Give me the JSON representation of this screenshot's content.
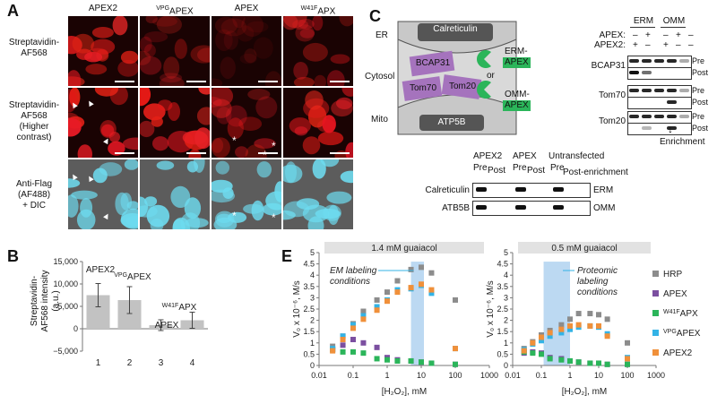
{
  "panel_letters": {
    "a": "A",
    "b": "B",
    "c": "C",
    "e": "E"
  },
  "panelA": {
    "columns": [
      "APEX2",
      "VPGAPEX",
      "APEX",
      "W41FAPX"
    ],
    "col_base": [
      "APEX2",
      "APEX",
      "APEX",
      "APX"
    ],
    "col_sup": [
      "",
      "VPG",
      "",
      "W41F"
    ],
    "rows": [
      {
        "label": "Streptavidin-\nAF568"
      },
      {
        "label": "Streptavidin-\nAF568\n(Higher\ncontrast)"
      },
      {
        "label": "Anti-Flag\n(AF488)\n+ DIC"
      }
    ],
    "arrowhead": "▲",
    "asterisk": "*"
  },
  "panelB": {
    "ylabel": "Streptavidin-AF568 intensity (a.u.)",
    "ylabel_line1": "Streptavidin-",
    "ylabel_line2": "AF568 intensity",
    "ylabel_line3": "(a.u.)",
    "bar_labels": [
      "APEX2",
      "VPGAPEX",
      "APEX",
      "W41FAPX"
    ],
    "bar_label_base": [
      "APEX2",
      "APEX",
      "APEX",
      "APX"
    ],
    "bar_label_sup": [
      "",
      "VPG",
      "",
      "W41F"
    ]
  },
  "panelC": {
    "diagram": {
      "er": "ER",
      "cytosol": "Cytosol",
      "mito": "Mito",
      "calreticulin": "Calreticulin",
      "bcap31": "BCAP31",
      "tom70": "Tom70",
      "tom20": "Tom20",
      "atp5b": "ATP5B",
      "or": "or",
      "erm_prefix": "ERM-",
      "omm_prefix": "OMM-",
      "apex": "APEX"
    },
    "blot1": {
      "groups": [
        "ERM",
        "OMM"
      ],
      "row_labels": [
        "APEX:",
        "APEX2:"
      ],
      "apex_signs": [
        "–",
        "+",
        "–",
        "+",
        "–"
      ],
      "apex2_signs": [
        "+",
        "–",
        "+",
        "–",
        "–"
      ],
      "proteins": [
        "BCAP31",
        "Tom70",
        "Tom20"
      ],
      "pre": "Pre",
      "post": "Post",
      "enrichment": "Enrichment",
      "arrow": "↓"
    },
    "blot2": {
      "groups": [
        "APEX2",
        "APEX",
        "Untransfected"
      ],
      "pre": "Pre",
      "post": "Post",
      "post_enrichment": "Post-enrichment",
      "proteins": [
        "Calreticulin",
        "ATB5B"
      ],
      "right_labels": [
        "ERM",
        "OMM"
      ]
    }
  },
  "panelE": {
    "left_title": "1.4 mM guaiacol",
    "right_title": "0.5 mM guaiacol",
    "ylabel": "V₀ x 10⁻⁶, M/s",
    "xlabel": "[H₂O₂], mM",
    "left_annotation": [
      "EM labeling",
      "conditions"
    ],
    "right_annotation": [
      "Proteomic",
      "labeling",
      "conditions"
    ],
    "legend": [
      {
        "name": "HRP",
        "color": "#8c8c8c"
      },
      {
        "name": "APEX",
        "color": "#7b4fa0"
      },
      {
        "name": "W41FAPX",
        "base": "APX",
        "sup": "W41F",
        "color": "#2bb55a"
      },
      {
        "name": "VPGAPEX",
        "base": "APEX",
        "sup": "VPG",
        "color": "#33b3e6"
      },
      {
        "name": "APEX2",
        "color": "#f0903a"
      }
    ]
  },
  "chart_data": [
    {
      "type": "bar",
      "categories": [
        "1",
        "2",
        "3",
        "4"
      ],
      "values": [
        7500,
        6400,
        800,
        1900
      ],
      "errors": [
        2600,
        3000,
        1200,
        1800
      ],
      "ylabel": "Streptavidin-AF568 intensity (a.u.)",
      "ylim": [
        -5000,
        15000
      ],
      "yticks": [
        "15,000",
        "10,000",
        "5,000",
        "0",
        "−5,000"
      ],
      "ytick_values": [
        15000,
        10000,
        5000,
        0,
        -5000
      ]
    },
    {
      "type": "scatter",
      "title": "1.4 mM guaiacol",
      "xlabel": "[H₂O₂], mM",
      "ylabel": "V₀ x 10⁻⁶, M/s",
      "xscale": "log",
      "xlim": [
        0.01,
        1000
      ],
      "ylim": [
        0,
        5
      ],
      "xticks": [
        "0.01",
        "0.1",
        "1",
        "10",
        "100",
        "1000"
      ],
      "xtick_values": [
        0.01,
        0.1,
        1,
        10,
        100,
        1000
      ],
      "yticks": [
        "0",
        "0.5",
        "1",
        "1.5",
        "2",
        "2.5",
        "3",
        "3.5",
        "4",
        "4.5",
        "5"
      ],
      "ytick_values": [
        0,
        0.5,
        1,
        1.5,
        2,
        2.5,
        3,
        3.5,
        4,
        4.5,
        5
      ],
      "highlight_x": [
        5,
        12
      ],
      "x": [
        0.025,
        0.05,
        0.1,
        0.2,
        0.5,
        1,
        2,
        5,
        10,
        20,
        100
      ],
      "series": [
        {
          "name": "HRP",
          "values": [
            0.85,
            1.3,
            1.85,
            2.4,
            2.9,
            3.25,
            3.75,
            4.25,
            4.35,
            4.1,
            2.9
          ]
        },
        {
          "name": "APEX",
          "values": [
            0.7,
            0.9,
            1.15,
            1.0,
            0.8,
            0.35,
            0.25,
            0.2,
            0.15,
            0.1,
            0.05
          ]
        },
        {
          "name": "W41FAPX",
          "values": [
            0.7,
            0.6,
            0.6,
            0.55,
            0.3,
            0.25,
            0.2,
            0.2,
            0.15,
            0.1,
            0.05
          ]
        },
        {
          "name": "VPGAPEX",
          "values": [
            0.75,
            1.3,
            1.8,
            2.2,
            2.6,
            2.9,
            3.35,
            3.4,
            3.55,
            3.2,
            0.75
          ]
        },
        {
          "name": "APEX2",
          "values": [
            0.65,
            1.15,
            1.65,
            2.05,
            2.45,
            2.85,
            3.25,
            3.45,
            3.6,
            3.35,
            0.75
          ]
        }
      ]
    },
    {
      "type": "scatter",
      "title": "0.5 mM guaiacol",
      "xlabel": "[H₂O₂], mM",
      "ylabel": "V₀ x 10⁻⁶, M/s",
      "xscale": "log",
      "xlim": [
        0.01,
        1000
      ],
      "ylim": [
        0,
        5
      ],
      "xticks": [
        "0.01",
        "0.1",
        "1",
        "10",
        "100",
        "1000"
      ],
      "xtick_values": [
        0.01,
        0.1,
        1,
        10,
        100,
        1000
      ],
      "yticks": [
        "0",
        "0.5",
        "1",
        "1.5",
        "2",
        "2.5",
        "3",
        "3.5",
        "4",
        "4.5",
        "5"
      ],
      "ytick_values": [
        0,
        0.5,
        1,
        1.5,
        2,
        2.5,
        3,
        3.5,
        4,
        4.5,
        5
      ],
      "highlight_x": [
        0.12,
        1.0
      ],
      "x": [
        0.025,
        0.05,
        0.1,
        0.2,
        0.5,
        1,
        2,
        5,
        10,
        20,
        100
      ],
      "series": [
        {
          "name": "HRP",
          "values": [
            0.75,
            1.05,
            1.35,
            1.55,
            1.8,
            2.05,
            2.3,
            2.3,
            2.25,
            2.05,
            1.0
          ]
        },
        {
          "name": "APEX",
          "values": [
            0.55,
            0.6,
            0.55,
            0.35,
            0.3,
            0.2,
            0.15,
            0.1,
            0.1,
            0.05,
            0.05
          ]
        },
        {
          "name": "W41FAPX",
          "values": [
            0.6,
            0.55,
            0.5,
            0.3,
            0.25,
            0.2,
            0.15,
            0.1,
            0.1,
            0.05,
            0.05
          ]
        },
        {
          "name": "VPGAPEX",
          "values": [
            0.7,
            0.95,
            1.1,
            1.3,
            1.45,
            1.6,
            1.7,
            1.75,
            1.7,
            1.4,
            0.35
          ]
        },
        {
          "name": "APEX2",
          "values": [
            0.65,
            1.0,
            1.25,
            1.45,
            1.6,
            1.75,
            1.8,
            1.75,
            1.75,
            1.3,
            0.3
          ]
        }
      ]
    }
  ]
}
